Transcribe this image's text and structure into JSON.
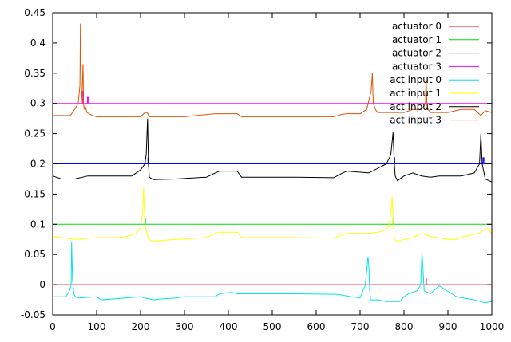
{
  "chart_data": {
    "type": "line",
    "title": "",
    "xlabel": "",
    "ylabel": "",
    "xlim": [
      0,
      1000
    ],
    "ylim": [
      -0.05,
      0.45
    ],
    "xticks": [
      0,
      100,
      200,
      300,
      400,
      500,
      600,
      700,
      800,
      900,
      1000
    ],
    "xtick_labels": [
      "0",
      "100",
      "200",
      "300",
      "400",
      "500",
      "600",
      "700",
      "800",
      "900",
      "1000"
    ],
    "yticks": [
      -0.05,
      0,
      0.05,
      0.1,
      0.15,
      0.2,
      0.25,
      0.3,
      0.35,
      0.4,
      0.45
    ],
    "ytick_labels": [
      "-0.05",
      "0",
      "0.05",
      "0.1",
      "0.15",
      "0.2",
      "0.25",
      "0.3",
      "0.35",
      "0.4",
      "0.45"
    ],
    "grid": false,
    "legend_position": "top-right",
    "series": [
      {
        "name": "actuator 0",
        "color": "#ff0000",
        "x": [
          0,
          850,
          850,
          851,
          851,
          1000
        ],
        "y": [
          0,
          0,
          0.01,
          0.01,
          0,
          0
        ]
      },
      {
        "name": "actuator 1",
        "color": "#00dd00",
        "x": [
          0,
          210,
          210,
          211,
          211,
          775,
          775,
          776,
          776,
          1000
        ],
        "y": [
          0.1,
          0.1,
          0.11,
          0.11,
          0.1,
          0.1,
          0.11,
          0.11,
          0.1,
          0.1
        ]
      },
      {
        "name": "actuator 2",
        "color": "#0000ff",
        "x": [
          0,
          217,
          217,
          219,
          219,
          778,
          778,
          779,
          779,
          980,
          980,
          982,
          982,
          1000
        ],
        "y": [
          0.2,
          0.2,
          0.21,
          0.21,
          0.2,
          0.2,
          0.21,
          0.21,
          0.2,
          0.2,
          0.21,
          0.21,
          0.2,
          0.2
        ]
      },
      {
        "name": "actuator 3",
        "color": "#ff00ff",
        "x": [
          0,
          68,
          68,
          70,
          70,
          79,
          79,
          81,
          81,
          1000
        ],
        "y": [
          0.3,
          0.3,
          0.32,
          0.32,
          0.3,
          0.3,
          0.31,
          0.31,
          0.3,
          0.3
        ]
      },
      {
        "name": "act input 0",
        "color": "#00e5e5",
        "x": [
          0,
          30,
          38,
          42,
          43,
          45,
          48,
          52,
          60,
          100,
          110,
          200,
          210,
          230,
          240,
          280,
          300,
          370,
          380,
          400,
          410,
          420,
          560,
          650,
          680,
          700,
          712,
          718,
          720,
          722,
          724,
          740,
          760,
          790,
          800,
          810,
          830,
          838,
          841,
          843,
          846,
          860,
          880,
          920,
          960,
          985,
          1000
        ],
        "y": [
          -0.02,
          -0.02,
          -0.01,
          0.0,
          0.07,
          0.01,
          -0.015,
          -0.02,
          -0.022,
          -0.02,
          -0.025,
          -0.02,
          -0.022,
          -0.025,
          -0.024,
          -0.022,
          -0.02,
          -0.02,
          -0.015,
          -0.013,
          -0.013,
          -0.015,
          -0.015,
          -0.016,
          -0.02,
          -0.022,
          0.0,
          0.046,
          0.03,
          -0.01,
          -0.025,
          -0.025,
          -0.028,
          -0.028,
          -0.02,
          -0.015,
          -0.01,
          0.0,
          0.052,
          0.03,
          -0.01,
          -0.015,
          -0.002,
          -0.02,
          -0.025,
          -0.03,
          -0.028
        ]
      },
      {
        "name": "act input 1",
        "color": "#ffff00",
        "x": [
          0,
          20,
          50,
          100,
          150,
          170,
          190,
          200,
          205,
          207,
          210,
          218,
          230,
          280,
          350,
          370,
          380,
          420,
          430,
          550,
          640,
          660,
          670,
          720,
          750,
          765,
          770,
          773,
          776,
          778,
          785,
          800,
          820,
          840,
          860,
          900,
          920,
          940,
          970,
          980,
          990,
          1000
        ],
        "y": [
          0.08,
          0.078,
          0.075,
          0.078,
          0.078,
          0.08,
          0.085,
          0.095,
          0.12,
          0.16,
          0.1,
          0.075,
          0.072,
          0.075,
          0.078,
          0.085,
          0.087,
          0.087,
          0.078,
          0.078,
          0.077,
          0.083,
          0.085,
          0.085,
          0.088,
          0.095,
          0.12,
          0.146,
          0.1,
          0.075,
          0.072,
          0.075,
          0.078,
          0.085,
          0.08,
          0.075,
          0.075,
          0.08,
          0.085,
          0.09,
          0.093,
          0.085
        ]
      },
      {
        "name": "act input 2",
        "color": "#000000",
        "x": [
          0,
          20,
          50,
          80,
          100,
          150,
          180,
          200,
          210,
          213,
          216,
          218,
          220,
          228,
          280,
          350,
          370,
          380,
          420,
          430,
          550,
          640,
          660,
          670,
          720,
          760,
          770,
          775,
          778,
          780,
          785,
          800,
          820,
          840,
          860,
          880,
          900,
          930,
          960,
          972,
          975,
          978,
          985,
          1000
        ],
        "y": [
          0.18,
          0.175,
          0.175,
          0.18,
          0.18,
          0.18,
          0.18,
          0.19,
          0.2,
          0.215,
          0.275,
          0.2,
          0.178,
          0.174,
          0.175,
          0.178,
          0.185,
          0.188,
          0.188,
          0.178,
          0.178,
          0.177,
          0.185,
          0.188,
          0.185,
          0.2,
          0.215,
          0.252,
          0.2,
          0.18,
          0.172,
          0.18,
          0.185,
          0.18,
          0.178,
          0.18,
          0.18,
          0.18,
          0.185,
          0.2,
          0.25,
          0.2,
          0.175,
          0.17
        ]
      },
      {
        "name": "act input 3",
        "color": "#e35300",
        "x": [
          0,
          40,
          50,
          58,
          62,
          63,
          65,
          67,
          69,
          70,
          72,
          74,
          78,
          90,
          100,
          150,
          200,
          210,
          215,
          220,
          260,
          300,
          370,
          380,
          420,
          430,
          550,
          640,
          660,
          670,
          700,
          715,
          725,
          728,
          730,
          735,
          740,
          760,
          800,
          820,
          840,
          849,
          850,
          852,
          855,
          860,
          880,
          900,
          930,
          960,
          975,
          985,
          1000
        ],
        "y": [
          0.28,
          0.28,
          0.29,
          0.3,
          0.33,
          0.432,
          0.3,
          0.32,
          0.365,
          0.3,
          0.29,
          0.295,
          0.285,
          0.28,
          0.278,
          0.278,
          0.278,
          0.285,
          0.285,
          0.278,
          0.278,
          0.278,
          0.283,
          0.283,
          0.283,
          0.278,
          0.278,
          0.278,
          0.282,
          0.283,
          0.283,
          0.29,
          0.32,
          0.35,
          0.3,
          0.29,
          0.285,
          0.285,
          0.285,
          0.29,
          0.29,
          0.3,
          0.348,
          0.3,
          0.29,
          0.285,
          0.285,
          0.285,
          0.29,
          0.29,
          0.28,
          0.288,
          0.285
        ]
      }
    ]
  }
}
